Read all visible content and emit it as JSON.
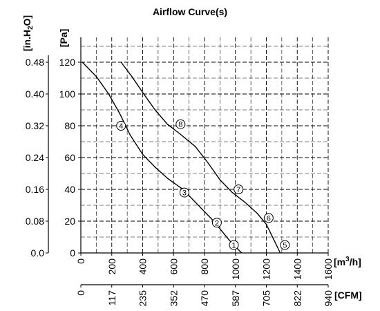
{
  "chart_data": {
    "type": "line",
    "title": "Airflow Curve(s)",
    "y_axes": {
      "pa": {
        "label": "[Pa]",
        "range": [
          0,
          130
        ],
        "ticks": [
          {
            "value": 0,
            "label": "0"
          },
          {
            "value": 20,
            "label": "20"
          },
          {
            "value": 40,
            "label": "40"
          },
          {
            "value": 60,
            "label": "60"
          },
          {
            "value": 80,
            "label": "80"
          },
          {
            "value": 100,
            "label": "100"
          },
          {
            "value": 120,
            "label": "120"
          }
        ]
      },
      "inh2o": {
        "label": "[in.H2O]",
        "label_main": "[in.H",
        "label_sub": "2",
        "label_end": "O]",
        "ticks": [
          {
            "value": 0,
            "label": "0.0"
          },
          {
            "value": 20,
            "label": "0.08"
          },
          {
            "value": 40,
            "label": "0.16"
          },
          {
            "value": 60,
            "label": "0.24"
          },
          {
            "value": 80,
            "label": "0.32"
          },
          {
            "value": 100,
            "label": "0.40"
          },
          {
            "value": 120,
            "label": "0.48"
          }
        ]
      }
    },
    "x_axes": {
      "m3h": {
        "label": "[m3/h]",
        "label_main": "[m",
        "label_sup": "3",
        "label_end": "/h]",
        "range": [
          0,
          1600
        ],
        "ticks": [
          {
            "value": 0,
            "label": "0"
          },
          {
            "value": 200,
            "label": "200"
          },
          {
            "value": 400,
            "label": "400"
          },
          {
            "value": 600,
            "label": "600"
          },
          {
            "value": 800,
            "label": "800"
          },
          {
            "value": 1000,
            "label": "1000"
          },
          {
            "value": 1200,
            "label": "1200"
          },
          {
            "value": 1400,
            "label": "1400"
          },
          {
            "value": 1600,
            "label": "1600"
          }
        ]
      },
      "cfm": {
        "label": "[CFM]",
        "ticks": [
          {
            "value": 0,
            "label": "0"
          },
          {
            "value": 200,
            "label": "117"
          },
          {
            "value": 400,
            "label": "235"
          },
          {
            "value": 600,
            "label": "352"
          },
          {
            "value": 800,
            "label": "470"
          },
          {
            "value": 1000,
            "label": "587"
          },
          {
            "value": 1200,
            "label": "705"
          },
          {
            "value": 1400,
            "label": "822"
          },
          {
            "value": 1600,
            "label": "940"
          }
        ]
      }
    },
    "grid": true,
    "series": [
      {
        "points": [
          [
            10,
            120
          ],
          [
            100,
            111
          ],
          [
            180,
            100
          ],
          [
            250,
            88
          ],
          [
            320,
            74
          ],
          [
            400,
            62
          ],
          [
            480,
            54
          ],
          [
            560,
            47
          ],
          [
            660,
            40
          ],
          [
            760,
            30
          ],
          [
            860,
            20
          ],
          [
            960,
            8
          ],
          [
            1040,
            0
          ]
        ],
        "labels": [
          "4",
          "3",
          "2"
        ],
        "label_points": [
          [
            260,
            80
          ],
          [
            670,
            38
          ],
          [
            880,
            19
          ]
        ]
      },
      {
        "points": [
          [
            260,
            120
          ],
          [
            330,
            111
          ],
          [
            400,
            101
          ],
          [
            480,
            90
          ],
          [
            560,
            81
          ],
          [
            640,
            75
          ],
          [
            740,
            67
          ],
          [
            820,
            57
          ],
          [
            900,
            46
          ],
          [
            980,
            38
          ],
          [
            1060,
            32
          ],
          [
            1140,
            25
          ],
          [
            1200,
            18
          ],
          [
            1250,
            8
          ],
          [
            1290,
            0
          ]
        ],
        "labels": [
          "8",
          "7",
          "6"
        ],
        "label_points": [
          [
            645,
            81
          ],
          [
            1020,
            40
          ],
          [
            1215,
            22
          ]
        ]
      }
    ],
    "annotations": [
      {
        "label": "1",
        "x": 990,
        "y": 5
      },
      {
        "label": "5",
        "x": 1320,
        "y": 5
      }
    ]
  }
}
